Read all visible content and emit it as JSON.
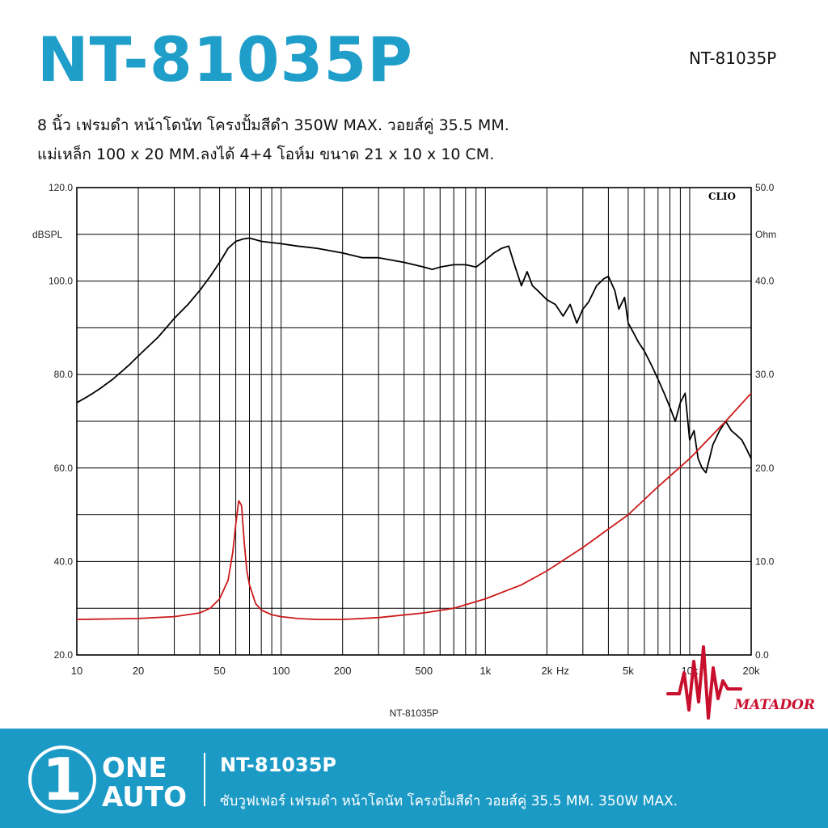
{
  "header": {
    "title": "NT-81035P",
    "model_label": "NT-81035P",
    "desc_line1": "8 นิ้ว เฟรมดำ หน้าโดนัท โครงปั้มสีดำ 350W MAX. วอยส์คู่ 35.5 MM.",
    "desc_line2": "แม่เหล็ก 100 x 20 MM.ลงได้ 4+4 โอห์ม ขนาด 21 x 10 x 10 CM."
  },
  "colors": {
    "brand_blue": "#1e9ec9",
    "footer_bg": "#1c9ac6",
    "spl_line": "#000000",
    "impedance_line": "#cc1a1a",
    "matador_red": "#c8102e"
  },
  "chart_data": {
    "type": "line",
    "watermark": "CLIO",
    "xlabel": "NT-81035P",
    "x_unit_label": "Hz",
    "x_scale": "log",
    "xlim": [
      10,
      20000
    ],
    "x_ticks": [
      {
        "value": 10,
        "label": "10"
      },
      {
        "value": 20,
        "label": "20"
      },
      {
        "value": 50,
        "label": "50"
      },
      {
        "value": 100,
        "label": "100"
      },
      {
        "value": 200,
        "label": "200"
      },
      {
        "value": 500,
        "label": "500"
      },
      {
        "value": 1000,
        "label": "1k"
      },
      {
        "value": 2000,
        "label": "2k"
      },
      {
        "value": 5000,
        "label": "5k"
      },
      {
        "value": 10000,
        "label": "10k"
      },
      {
        "value": 20000,
        "label": "20k"
      }
    ],
    "y_left": {
      "label": "dBSPL",
      "ylim": [
        20,
        120
      ],
      "ticks": [
        "20.0",
        "40.0",
        "60.0",
        "80.0",
        "100.0",
        "120.0"
      ]
    },
    "y_right": {
      "label": "Ohm",
      "ylim": [
        0,
        50
      ],
      "ticks": [
        "0.0",
        "10.0",
        "20.0",
        "30.0",
        "40.0",
        "50.0"
      ]
    },
    "grid": true,
    "series": [
      {
        "axis": "left",
        "x": [
          10,
          11,
          12,
          13,
          15,
          18,
          20,
          25,
          30,
          35,
          40,
          45,
          50,
          55,
          60,
          65,
          70,
          80,
          100,
          120,
          150,
          200,
          250,
          300,
          400,
          500,
          550,
          600,
          700,
          800,
          900,
          1000,
          1100,
          1200,
          1300,
          1400,
          1500,
          1600,
          1700,
          1800,
          2000,
          2200,
          2400,
          2600,
          2800,
          3000,
          3200,
          3500,
          3800,
          4000,
          4300,
          4500,
          4800,
          5000,
          5300,
          5600,
          6000,
          6500,
          7000,
          7500,
          8000,
          8500,
          9000,
          9500,
          10000,
          10500,
          11000,
          11500,
          12000,
          12500,
          13000,
          14000,
          15000,
          16000,
          17000,
          18000,
          19000,
          20000
        ],
        "values": [
          74,
          75,
          76,
          77,
          79,
          82,
          84,
          88,
          92,
          95,
          98,
          101,
          104,
          107,
          108.5,
          109,
          109.2,
          108.5,
          108,
          107.5,
          107,
          106,
          105,
          105,
          104,
          103,
          102.5,
          103,
          103.5,
          103.5,
          103,
          104.5,
          106,
          107,
          107.5,
          103,
          99,
          102,
          99,
          98,
          96,
          95,
          92.5,
          95,
          91,
          94,
          95.5,
          99,
          100.5,
          101,
          98,
          94,
          96.5,
          91,
          89,
          87,
          85,
          82,
          79,
          76,
          73,
          70,
          74,
          76,
          66,
          68,
          62,
          60,
          59,
          62,
          65,
          68,
          70,
          68,
          67,
          66,
          64,
          62
        ]
      },
      {
        "axis": "right",
        "x": [
          10,
          20,
          30,
          40,
          45,
          50,
          55,
          58,
          60,
          62,
          64,
          65,
          66,
          68,
          70,
          75,
          80,
          90,
          100,
          120,
          150,
          200,
          300,
          500,
          700,
          1000,
          1500,
          2000,
          3000,
          5000,
          7000,
          10000,
          15000,
          20000
        ],
        "values": [
          3.8,
          3.9,
          4.1,
          4.5,
          5,
          6,
          8,
          11,
          14,
          16.5,
          16,
          14,
          12,
          9,
          7.5,
          5.5,
          4.8,
          4.3,
          4.1,
          3.9,
          3.8,
          3.8,
          4,
          4.5,
          5,
          6,
          7.5,
          9,
          11.5,
          15,
          18,
          21,
          25,
          28
        ]
      }
    ]
  },
  "brand": {
    "matador_text": "MATADOR"
  },
  "footer": {
    "logo_numeral": "1",
    "logo_line1": "ONE",
    "logo_line2": "AUTO",
    "title": "NT-81035P",
    "subtitle": "ซับวูฟเฟอร์ เฟรมดำ หน้าโดนัท โครงปั้มสีดำ วอยส์คู่ 35.5 MM. 350W MAX."
  }
}
